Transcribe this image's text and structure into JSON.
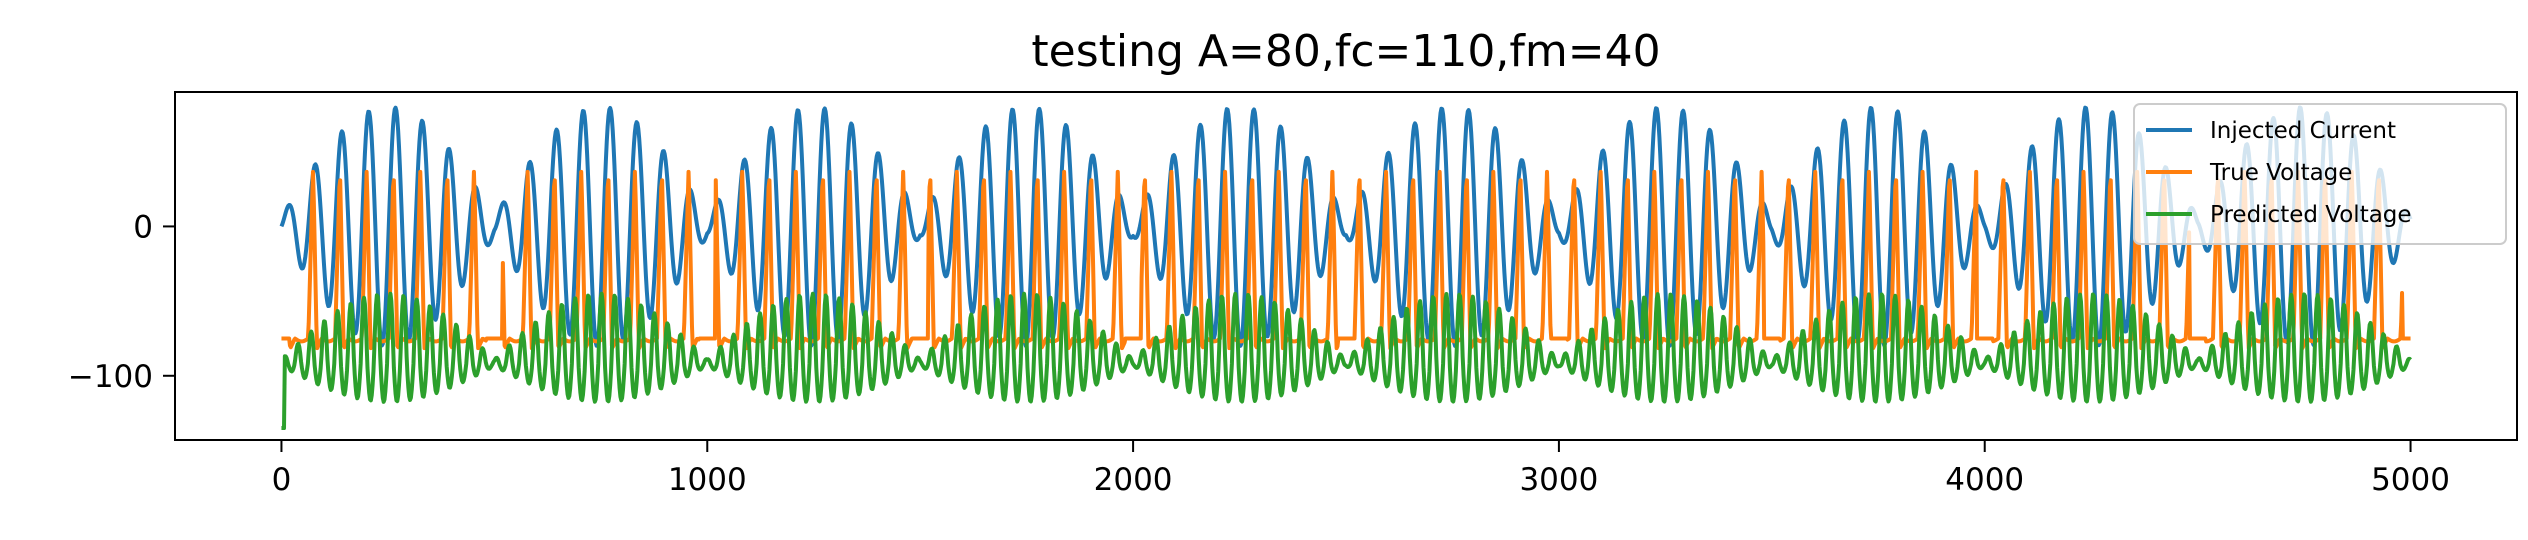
{
  "chart_data": {
    "type": "line",
    "title": "testing A=80,fc=110,fm=40",
    "xlabel": "",
    "ylabel": "",
    "xlim": [
      -250,
      5250
    ],
    "ylim": [
      -143,
      90
    ],
    "x_ticks": [
      {
        "value": 0,
        "label": "0"
      },
      {
        "value": 1000,
        "label": "1000"
      },
      {
        "value": 2000,
        "label": "2000"
      },
      {
        "value": 3000,
        "label": "3000"
      },
      {
        "value": 4000,
        "label": "4000"
      },
      {
        "value": 5000,
        "label": "5000"
      }
    ],
    "y_ticks": [
      {
        "value": 0,
        "label": "0"
      },
      {
        "value": -100,
        "label": "−100"
      }
    ],
    "grid": false,
    "legend": "top-right",
    "n_samples": 5000,
    "series": [
      {
        "name": "Injected Current",
        "color": "#1f77b4",
        "model": {
          "kind": "am",
          "amplitude": 80,
          "carrier_period": 63,
          "envelope_period": 500,
          "offset": 0
        }
      },
      {
        "name": "True Voltage",
        "color": "#ff7f0e",
        "model": {
          "kind": "pulse",
          "baseline": -75,
          "peak": 40,
          "trough": -82,
          "period": 63,
          "envelope_period": 500,
          "floor": -85
        }
      },
      {
        "name": "Predicted Voltage",
        "color": "#2ca02c",
        "model": {
          "kind": "ripple",
          "baseline": -92,
          "max": -45,
          "min": -122,
          "period": 31,
          "envelope_period": 500,
          "start_value": -135
        }
      }
    ]
  }
}
